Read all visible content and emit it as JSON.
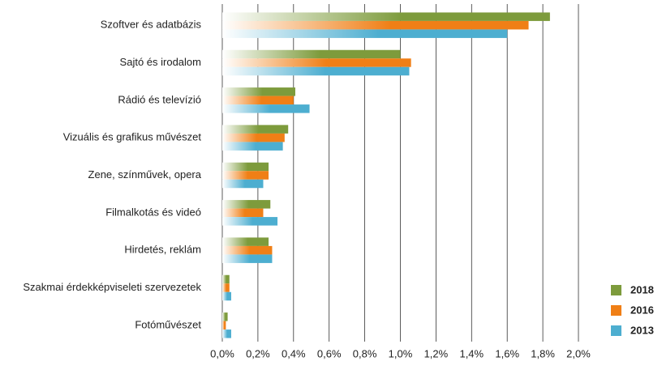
{
  "chart_data": {
    "type": "hbar",
    "categories": [
      "Szoftver és adatbázis",
      "Sajtó és irodalom",
      "Rádió és televízió",
      "Vizuális és grafikus művészet",
      "Zene, színművek, opera",
      "Filmalkotás és videó",
      "Hirdetés, reklám",
      "Szakmai érdekképviseleti szervezetek",
      "Fotóművészet"
    ],
    "series": [
      {
        "name": "2018",
        "color": "#7d9b3c",
        "values": [
          1.84,
          1.0,
          0.41,
          0.37,
          0.26,
          0.27,
          0.26,
          0.04,
          0.03
        ]
      },
      {
        "name": "2016",
        "color": "#f07f16",
        "values": [
          1.72,
          1.06,
          0.4,
          0.35,
          0.26,
          0.23,
          0.28,
          0.04,
          0.02
        ]
      },
      {
        "name": "2013",
        "color": "#4daed0",
        "values": [
          1.6,
          1.05,
          0.49,
          0.34,
          0.23,
          0.31,
          0.28,
          0.05,
          0.05
        ]
      }
    ],
    "xlim": [
      0,
      2.0
    ],
    "xticks": [
      {
        "value": 0,
        "label": "0,0%"
      },
      {
        "value": 0.2,
        "label": "0,2%"
      },
      {
        "value": 0.4,
        "label": "0,4%"
      },
      {
        "value": 0.6,
        "label": "0,6%"
      },
      {
        "value": 0.8,
        "label": "0,8%"
      },
      {
        "value": 1.0,
        "label": "1,0%"
      },
      {
        "value": 1.2,
        "label": "1,2%"
      },
      {
        "value": 1.4,
        "label": "1,4%"
      },
      {
        "value": 1.6,
        "label": "1,6%"
      },
      {
        "value": 1.8,
        "label": "1,8%"
      },
      {
        "value": 2.0,
        "label": "2,0%"
      }
    ],
    "grid": true,
    "legend": "bottom-right"
  }
}
